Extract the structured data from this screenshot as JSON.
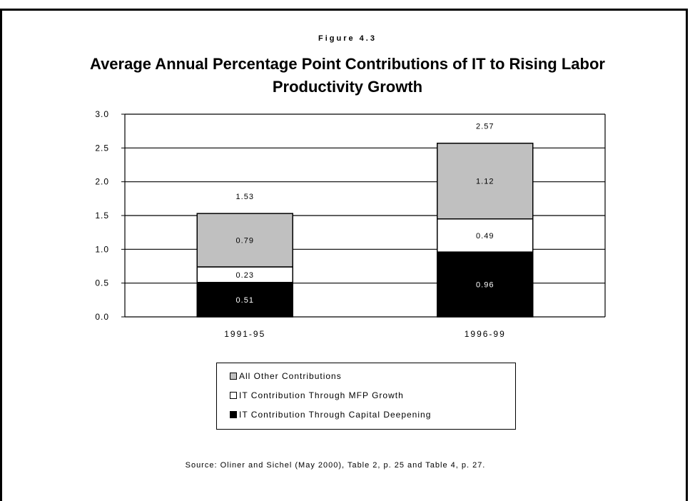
{
  "figure_label": "Figure 4.3",
  "title": "Average Annual Percentage Point Contributions of IT to Rising Labor Productivity Growth",
  "source": "Source:  Oliner and Sichel (May 2000), Table 2, p. 25 and Table 4, p. 27.",
  "colors": {
    "capital_deepening": "#000000",
    "mfp_growth": "#ffffff",
    "all_other": "#c0c0c0"
  },
  "chart_data": {
    "type": "bar",
    "stacked": true,
    "categories": [
      "1991-95",
      "1996-99"
    ],
    "series": [
      {
        "name": "IT Contribution Through Capital Deepening",
        "values": [
          0.51,
          0.96
        ],
        "labels": [
          "0.51",
          "0.96"
        ],
        "color": "#000000"
      },
      {
        "name": "IT Contribution Through MFP Growth",
        "values": [
          0.23,
          0.49
        ],
        "labels": [
          "0.23",
          "0.49"
        ],
        "color": "#ffffff"
      },
      {
        "name": "All Other Contributions",
        "values": [
          0.79,
          1.12
        ],
        "labels": [
          "0.79",
          "1.12"
        ],
        "color": "#c0c0c0"
      }
    ],
    "totals": [
      1.53,
      2.57
    ],
    "total_labels": [
      "1.53",
      "2.57"
    ],
    "ylim": [
      0,
      3.0
    ],
    "yticks": [
      "0.0",
      "0.5",
      "1.0",
      "1.5",
      "2.0",
      "2.5",
      "3.0"
    ],
    "grid": true,
    "legend_position": "bottom",
    "xlabel": "",
    "ylabel": ""
  },
  "legend": {
    "items": [
      {
        "label": "All Other Contributions",
        "color": "#c0c0c0"
      },
      {
        "label": "IT Contribution Through MFP Growth",
        "color": "#ffffff"
      },
      {
        "label": "IT Contribution Through Capital Deepening",
        "color": "#000000"
      }
    ]
  }
}
